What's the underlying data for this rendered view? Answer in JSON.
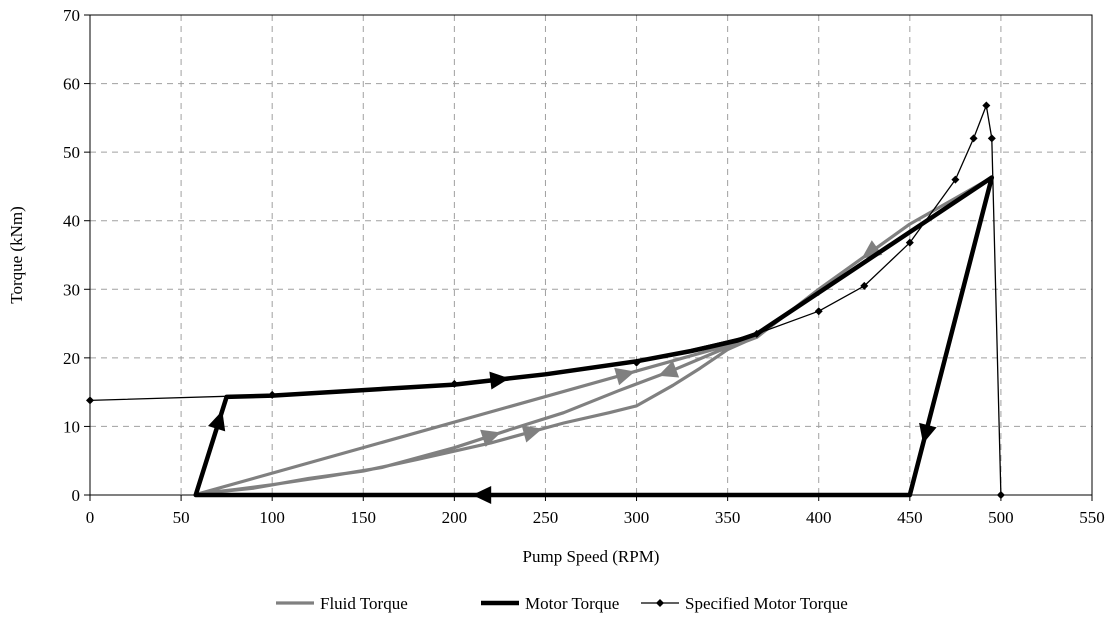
{
  "chart_data": {
    "type": "line",
    "title": "",
    "xlabel": "Pump Speed (RPM)",
    "ylabel": "Torque (kNm)",
    "xlim": [
      0,
      550
    ],
    "ylim": [
      0,
      70
    ],
    "xticks": [
      0,
      50,
      100,
      150,
      200,
      250,
      300,
      350,
      400,
      450,
      500,
      550
    ],
    "yticks": [
      0,
      10,
      20,
      30,
      40,
      50,
      60,
      70
    ],
    "grid": true,
    "legend_position": "bottom",
    "series": [
      {
        "name": "Fluid Torque",
        "color": "#808080",
        "markers": false,
        "arrows": [
          {
            "x": 428,
            "y": 35.2,
            "dir": "backward"
          },
          {
            "x": 295,
            "y": 16.8,
            "dir": "forward"
          },
          {
            "x": 220,
            "y": 9.2,
            "dir": "forward"
          },
          {
            "x": 243,
            "y": 9.5,
            "dir": "backward"
          },
          {
            "x": 318,
            "y": 17.0,
            "dir": "backward"
          }
        ],
        "points": [
          [
            60,
            0.2
          ],
          [
            80,
            0.8
          ],
          [
            100,
            1.5
          ],
          [
            130,
            2.7
          ],
          [
            160,
            4.0
          ],
          [
            200,
            6.9
          ],
          [
            230,
            9.5
          ],
          [
            260,
            12.0
          ],
          [
            290,
            15.2
          ],
          [
            320,
            18.2
          ],
          [
            345,
            21.0
          ],
          [
            360,
            22.5
          ],
          [
            366,
            23.0
          ],
          [
            360,
            22.4
          ],
          [
            350,
            21.2
          ],
          [
            335,
            18.5
          ],
          [
            320,
            16.0
          ],
          [
            300,
            13.0
          ],
          [
            285,
            12.0
          ],
          [
            260,
            10.5
          ],
          [
            220,
            7.6
          ],
          [
            180,
            5.2
          ],
          [
            150,
            3.5
          ],
          [
            120,
            2.4
          ],
          [
            90,
            1.0
          ],
          [
            60,
            0.2
          ],
          [
            366,
            23.0
          ],
          [
            400,
            30.0
          ],
          [
            450,
            39.5
          ],
          [
            495,
            46.3
          ]
        ]
      },
      {
        "name": "Motor Torque",
        "color": "#000000",
        "markers": false,
        "arrows": [
          {
            "x": 71,
            "y": 11.0,
            "dir": "forward"
          },
          {
            "x": 225,
            "y": 16.8,
            "dir": "forward"
          },
          {
            "x": 465,
            "y": 8.4,
            "dir": "forward"
          },
          {
            "x": 215,
            "y": 0.0,
            "dir": "forward"
          }
        ],
        "points": [
          [
            58,
            0.0
          ],
          [
            75,
            14.3
          ],
          [
            100,
            14.5
          ],
          [
            200,
            16.1
          ],
          [
            250,
            17.6
          ],
          [
            300,
            19.5
          ],
          [
            330,
            21.0
          ],
          [
            355,
            22.5
          ],
          [
            366,
            23.5
          ],
          [
            495,
            46.3
          ],
          [
            450,
            0.0
          ],
          [
            58,
            0.0
          ]
        ]
      },
      {
        "name": "Specified Motor Torque",
        "color": "#000000",
        "markers": true,
        "arrows": [],
        "points": [
          [
            0,
            13.8
          ],
          [
            100,
            14.6
          ],
          [
            200,
            16.2
          ],
          [
            300,
            19.3
          ],
          [
            366,
            23.5
          ],
          [
            400,
            26.8
          ],
          [
            425,
            30.5
          ],
          [
            450,
            36.8
          ],
          [
            475,
            46.0
          ],
          [
            485,
            52.0
          ],
          [
            492,
            56.8
          ],
          [
            495,
            52.0
          ],
          [
            500,
            0.0
          ]
        ]
      }
    ]
  }
}
